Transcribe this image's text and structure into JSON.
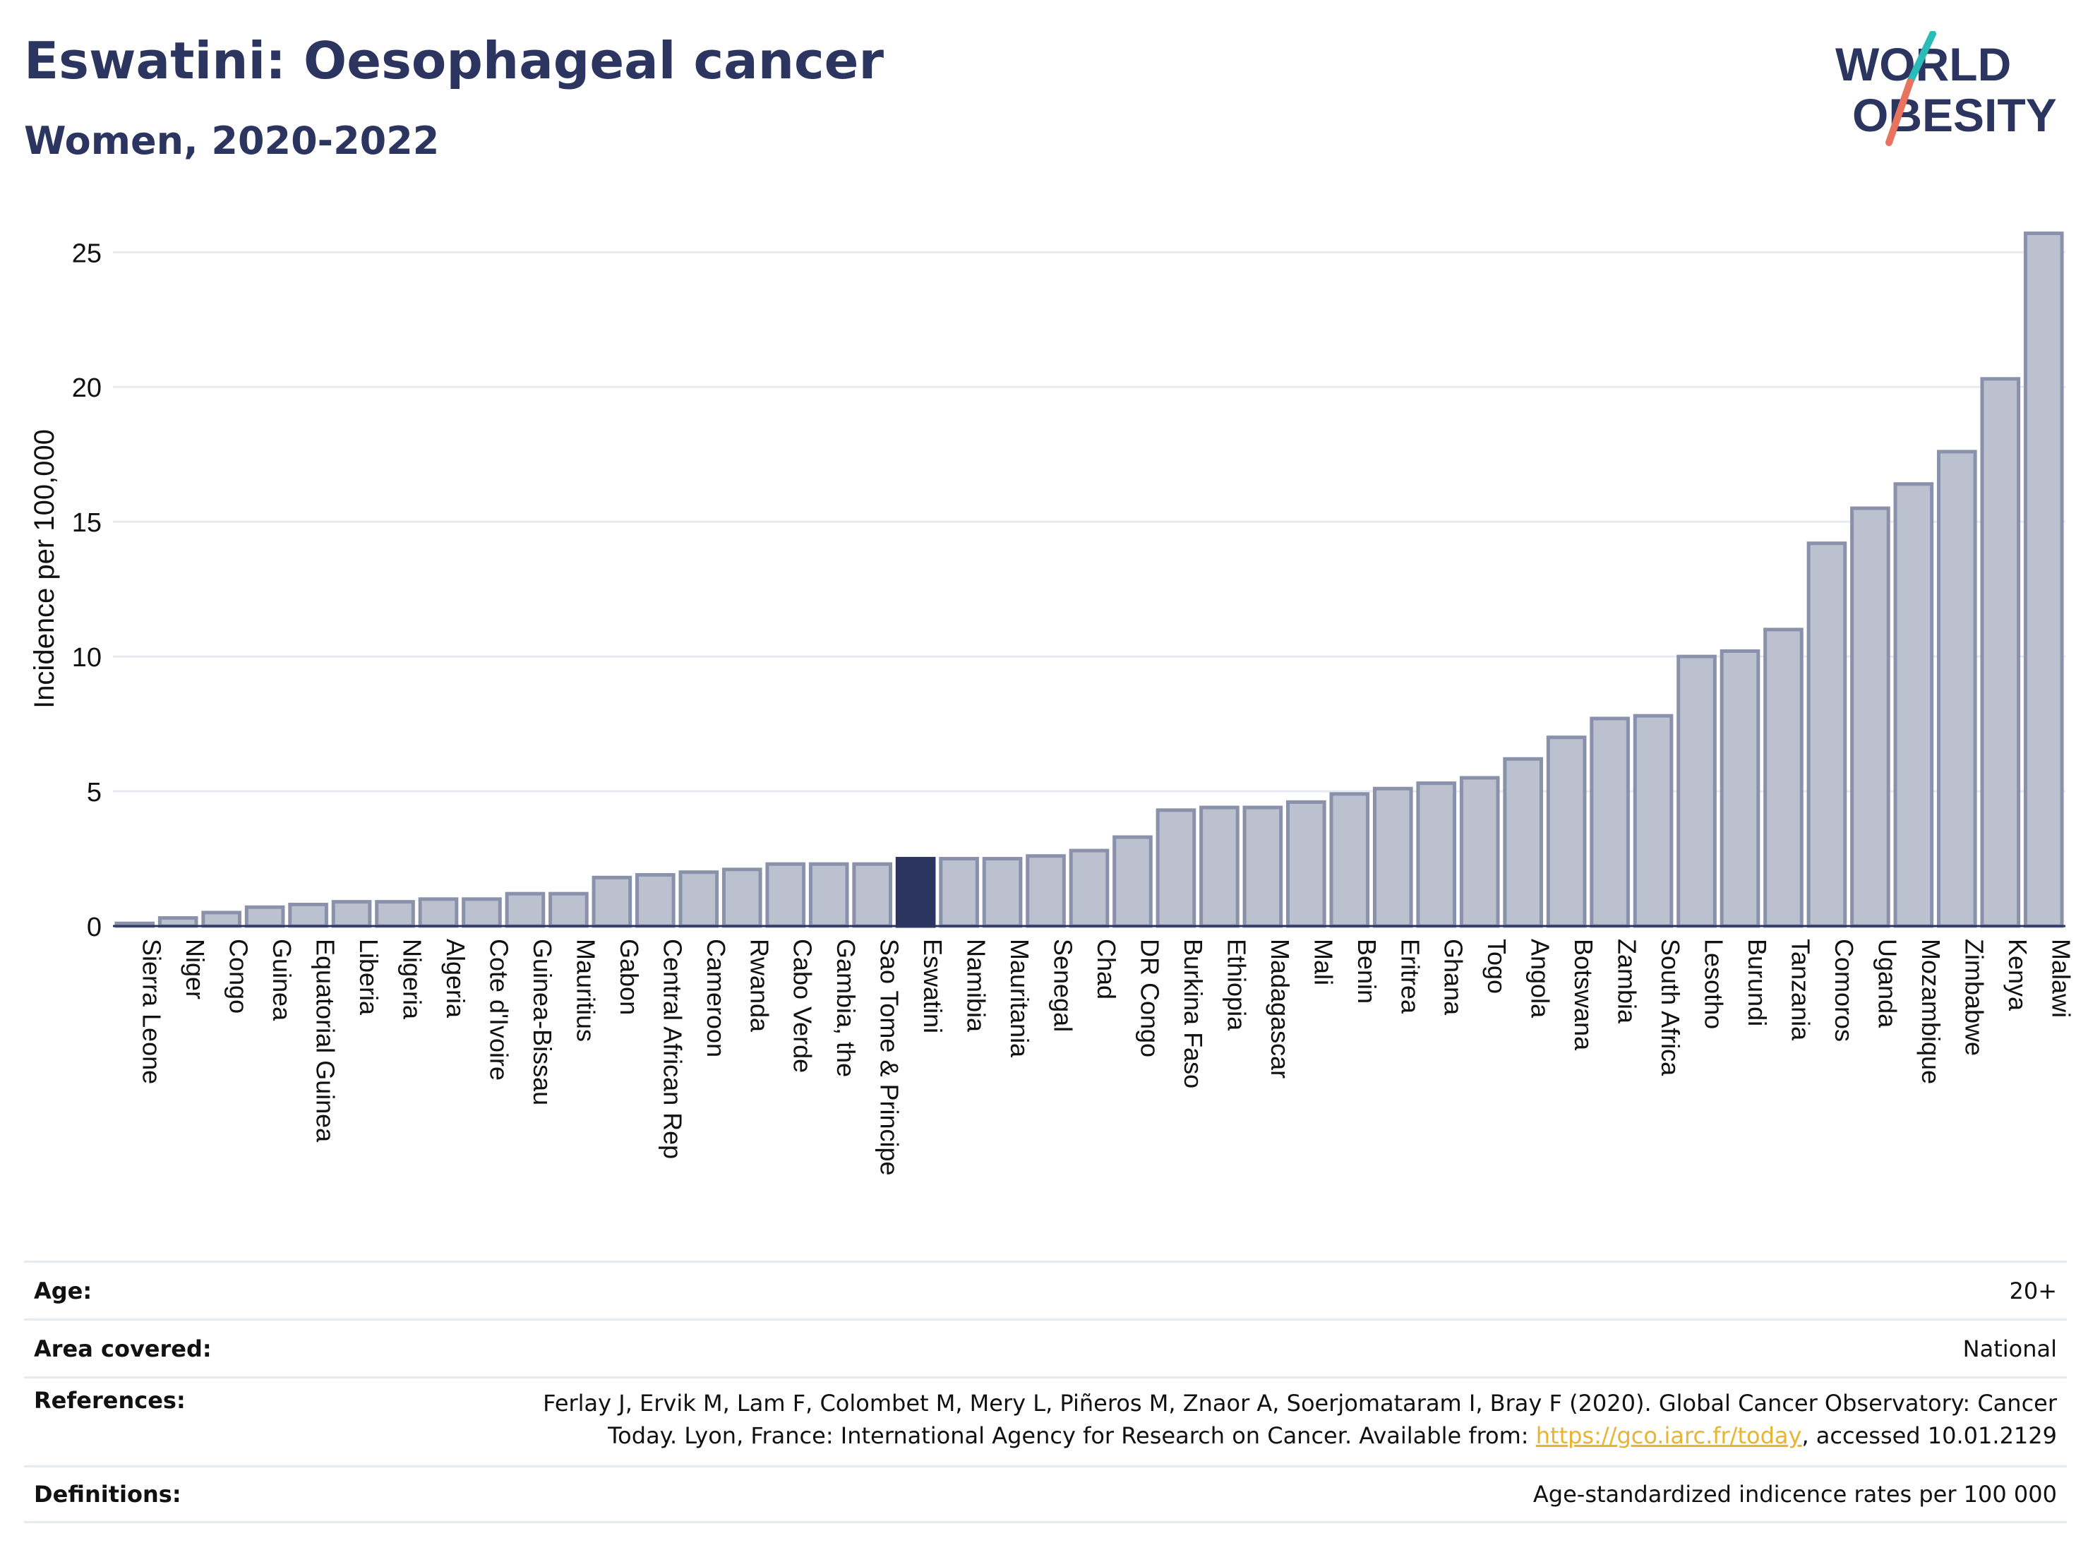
{
  "header": {
    "title": "Eswatini: Oesophageal cancer",
    "subtitle": "Women, 2020-2022"
  },
  "logo": {
    "line1": "WORLD",
    "line2": "OBESITY"
  },
  "chart_data": {
    "type": "bar",
    "title": "Eswatini: Oesophageal cancer",
    "subtitle": "Women, 2020-2022",
    "xlabel": "",
    "ylabel": "Incidence per 100,000",
    "ylim": [
      0,
      26.5
    ],
    "yticks": [
      0,
      5,
      10,
      15,
      20,
      25
    ],
    "grid": true,
    "highlight": "Eswatini",
    "colors": {
      "bar": "#bcc1d0",
      "bar_border": "#8a91ab",
      "highlight": "#2b3560",
      "grid": "#e6ebf1",
      "axis": "#2b3560"
    },
    "categories": [
      "Sierra Leone",
      "Niger",
      "Congo",
      "Guinea",
      "Equatorial Guinea",
      "Liberia",
      "Nigeria",
      "Algeria",
      "Cote d'Ivoire",
      "Guinea-Bissau",
      "Mauritius",
      "Gabon",
      "Central African Rep",
      "Cameroon",
      "Rwanda",
      "Cabo Verde",
      "Gambia, the",
      "Sao Tome & Principe",
      "Eswatini",
      "Namibia",
      "Mauritania",
      "Senegal",
      "Chad",
      "DR Congo",
      "Burkina Faso",
      "Ethiopia",
      "Madagascar",
      "Mali",
      "Benin",
      "Eritrea",
      "Ghana",
      "Togo",
      "Angola",
      "Botswana",
      "Zambia",
      "South Africa",
      "Lesotho",
      "Burundi",
      "Tanzania",
      "Comoros",
      "Uganda",
      "Mozambique",
      "Zimbabwe",
      "Kenya",
      "Malawi"
    ],
    "values": [
      0.1,
      0.3,
      0.5,
      0.7,
      0.8,
      0.9,
      0.9,
      1.0,
      1.0,
      1.2,
      1.2,
      1.8,
      1.9,
      2.0,
      2.1,
      2.3,
      2.3,
      2.3,
      2.5,
      2.5,
      2.5,
      2.6,
      2.8,
      3.3,
      4.3,
      4.4,
      4.4,
      4.6,
      4.9,
      5.1,
      5.3,
      5.5,
      6.2,
      7.0,
      7.7,
      7.8,
      10.0,
      10.2,
      11.0,
      14.2,
      15.5,
      16.4,
      17.6,
      20.3,
      25.7
    ]
  },
  "info": {
    "age_label": "Age:",
    "age_value": "20+",
    "area_label": "Area covered:",
    "area_value": "National",
    "references_label": "References:",
    "references_text1": "Ferlay J, Ervik M, Lam F, Colombet M, Mery L, Piñeros M, Znaor A, Soerjomataram I, Bray F (2020). Global Cancer Observatory: Cancer",
    "references_text2": "Today. Lyon, France: International Agency for Research on Cancer. Available from: ",
    "references_link": "https://gco.iarc.fr/today",
    "references_text3": ", accessed 10.01.2129",
    "definitions_label": "Definitions:",
    "definitions_value": "Age-standardized indicence rates per 100 000"
  }
}
